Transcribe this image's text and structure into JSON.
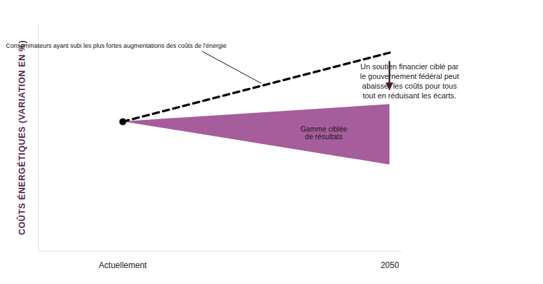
{
  "chart_data": {
    "type": "line",
    "y_label": "COÛTS ÉNERGÉTIQUES (VARIATION EN %)",
    "categories": [
      "Actuellement",
      "2050"
    ],
    "ylim": [
      -60,
      45
    ],
    "yticks": [],
    "tick_labels": "x",
    "series": [
      {
        "name": "Consommateurs ayant subi les plus fortes augmentations des coûts de l'énergie",
        "type": "line",
        "line_style": "dashed",
        "color": "#000000",
        "values": [
          0,
          32
        ]
      },
      {
        "name": "Gamme ciblée\nde résultats",
        "type": "area",
        "color": "#a65d9b",
        "values_low": [
          0,
          -20
        ],
        "values_high": [
          0,
          8
        ]
      }
    ],
    "annotations": [
      {
        "text": "Un soutien financier ciblé par\nle gouvernement fédéral peut\nabaisser les coûts pour tous\ntout en réduisant les écarts."
      }
    ]
  }
}
